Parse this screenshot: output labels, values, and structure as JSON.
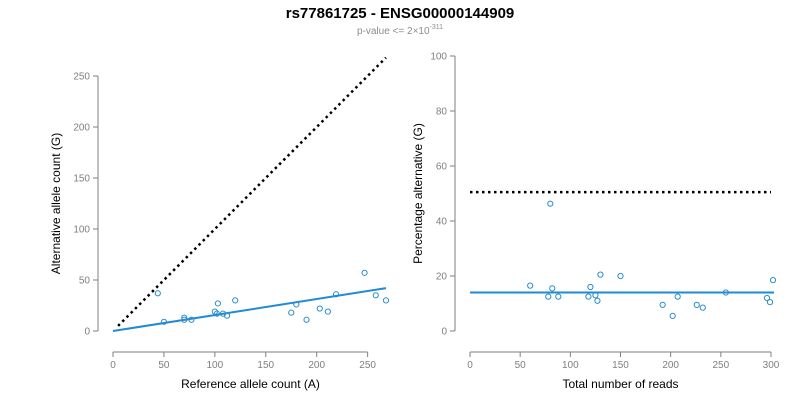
{
  "header": {
    "title": "rs77861725 - ENSG00000144909",
    "subtitle_prefix": "p-value <= 2×10",
    "subtitle_exponent": "-311"
  },
  "chart_data": [
    {
      "type": "scatter",
      "xlabel": "Reference allele count (A)",
      "ylabel": "Alternative allele count (G)",
      "xlim": [
        0,
        270
      ],
      "ylim": [
        0,
        250
      ],
      "xticks": [
        0,
        50,
        100,
        150,
        200,
        250
      ],
      "yticks": [
        0,
        50,
        100,
        150,
        200,
        250
      ],
      "grid": false,
      "points": [
        {
          "x": 44,
          "y": 37
        },
        {
          "x": 50,
          "y": 9
        },
        {
          "x": 70,
          "y": 13
        },
        {
          "x": 70,
          "y": 11
        },
        {
          "x": 77,
          "y": 11
        },
        {
          "x": 100,
          "y": 19
        },
        {
          "x": 102,
          "y": 17
        },
        {
          "x": 103,
          "y": 27
        },
        {
          "x": 108,
          "y": 17
        },
        {
          "x": 112,
          "y": 15
        },
        {
          "x": 120,
          "y": 30
        },
        {
          "x": 175,
          "y": 18
        },
        {
          "x": 180,
          "y": 26
        },
        {
          "x": 190,
          "y": 11
        },
        {
          "x": 203,
          "y": 22
        },
        {
          "x": 211,
          "y": 19
        },
        {
          "x": 219,
          "y": 36
        },
        {
          "x": 247,
          "y": 57
        },
        {
          "x": 258,
          "y": 35
        },
        {
          "x": 268,
          "y": 30
        }
      ],
      "fit_line": {
        "x": [
          0,
          268
        ],
        "y": [
          0,
          42
        ],
        "color": "#1f8ad6"
      },
      "reference_line": {
        "x": [
          5,
          268
        ],
        "y": [
          5,
          268
        ],
        "style": "dotted",
        "color": "#000000"
      },
      "point_color": "#2b8fc9"
    },
    {
      "type": "scatter",
      "xlabel": "Total number of reads",
      "ylabel": "Percentage alternative (G)",
      "xlim": [
        0,
        300
      ],
      "ylim": [
        0,
        100
      ],
      "xticks": [
        0,
        50,
        100,
        150,
        200,
        250,
        300
      ],
      "yticks": [
        0,
        20,
        40,
        60,
        80,
        100
      ],
      "grid": false,
      "points": [
        {
          "x": 60,
          "y": 16.5
        },
        {
          "x": 78,
          "y": 12.5
        },
        {
          "x": 80,
          "y": 46.3
        },
        {
          "x": 82,
          "y": 15.5
        },
        {
          "x": 88,
          "y": 12.5
        },
        {
          "x": 118,
          "y": 12.5
        },
        {
          "x": 120,
          "y": 16
        },
        {
          "x": 125,
          "y": 13
        },
        {
          "x": 127,
          "y": 11
        },
        {
          "x": 130,
          "y": 20.5
        },
        {
          "x": 150,
          "y": 20
        },
        {
          "x": 192,
          "y": 9.5
        },
        {
          "x": 202,
          "y": 5.5
        },
        {
          "x": 207,
          "y": 12.5
        },
        {
          "x": 226,
          "y": 9.5
        },
        {
          "x": 232,
          "y": 8.5
        },
        {
          "x": 255,
          "y": 14
        },
        {
          "x": 296,
          "y": 12
        },
        {
          "x": 299,
          "y": 10.5
        },
        {
          "x": 302,
          "y": 18.5
        }
      ],
      "fit_line": {
        "x": [
          0,
          303
        ],
        "y": [
          14,
          14
        ],
        "color": "#1f8ad6"
      },
      "reference_line": {
        "x": [
          0,
          300
        ],
        "y": [
          50.5,
          50.5
        ],
        "style": "dotted",
        "color": "#000000"
      },
      "point_color": "#2b8fc9"
    }
  ]
}
